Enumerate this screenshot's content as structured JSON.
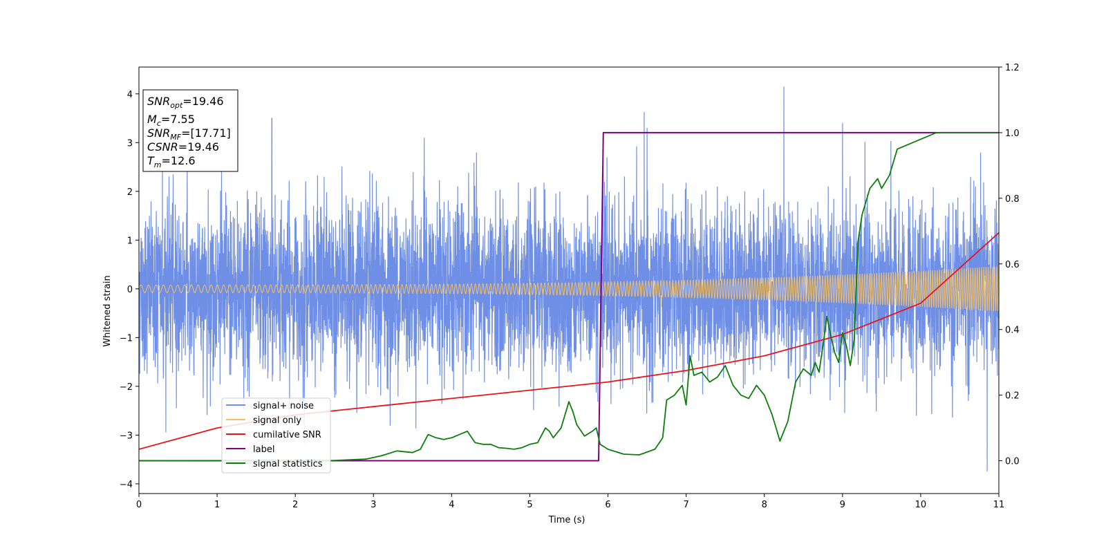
{
  "chart_data": {
    "type": "line",
    "title": "",
    "xlabel": "Time (s)",
    "ylabel": "Whitened strain",
    "xlim": [
      0,
      11
    ],
    "ylim_left": [
      -4.2,
      4.55
    ],
    "ylim_right": [
      -0.1,
      1.2
    ],
    "x_ticks": [
      0,
      1,
      2,
      3,
      4,
      5,
      6,
      7,
      8,
      9,
      10,
      11
    ],
    "y_left_ticks": [
      -4,
      -3,
      -2,
      -1,
      0,
      1,
      2,
      3,
      4
    ],
    "y_right_ticks": [
      0.0,
      0.2,
      0.4,
      0.6,
      0.8,
      1.0,
      1.2
    ],
    "grid": false,
    "legend_position": "lower-left",
    "info_box": {
      "snr_opt": "SNR",
      "snr_opt_sub": "opt",
      "snr_opt_value": "=19.46",
      "mc": "M",
      "mc_sub": "c",
      "mc_value": "=7.55",
      "snr_mf": "SNR",
      "snr_mf_sub": "MF",
      "snr_mf_value": "=[17.71]",
      "csnr": "CSNR",
      "csnr_value": "=19.46",
      "tm": "T",
      "tm_sub": "m",
      "tm_value": "=12.6"
    },
    "series": [
      {
        "name": "signal+ noise",
        "axis": "left",
        "color": "#6f8fe6",
        "kind": "noise",
        "envelope_typical": 2.2,
        "sample_peaks": [
          {
            "x": 0.3,
            "y": 2.55
          },
          {
            "x": 1.7,
            "y": 3.5
          },
          {
            "x": 3.65,
            "y": 3.1
          },
          {
            "x": 6.5,
            "y": 3.3
          },
          {
            "x": 8.25,
            "y": 4.15
          },
          {
            "x": 9.0,
            "y": 3.4
          },
          {
            "x": 10.85,
            "y": -3.75
          }
        ]
      },
      {
        "name": "signal only",
        "axis": "left",
        "color": "#f5c061",
        "kind": "chirp",
        "amplitude_start": 0.08,
        "amplitude_end": 0.47
      },
      {
        "name": "cumilative SNR",
        "axis": "right",
        "color": "#e8141a",
        "x": [
          0,
          1,
          2,
          3,
          4,
          5,
          6,
          7,
          8,
          9,
          10,
          11
        ],
        "y": [
          0.035,
          0.1,
          0.14,
          0.165,
          0.19,
          0.215,
          0.24,
          0.275,
          0.32,
          0.385,
          0.48,
          0.695
        ]
      },
      {
        "name": "label",
        "axis": "right",
        "color": "#800080",
        "x": [
          0,
          5.88,
          5.94,
          11
        ],
        "y": [
          0,
          0,
          1,
          1
        ]
      },
      {
        "name": "signal statistics",
        "axis": "right",
        "color": "#0a7d0a",
        "x": [
          0,
          2.5,
          2.9,
          3.1,
          3.3,
          3.5,
          3.6,
          3.7,
          3.8,
          3.9,
          4.0,
          4.1,
          4.2,
          4.3,
          4.4,
          4.5,
          4.6,
          4.7,
          4.8,
          4.9,
          5.0,
          5.1,
          5.2,
          5.25,
          5.3,
          5.4,
          5.5,
          5.55,
          5.6,
          5.7,
          5.8,
          5.85,
          5.9,
          6.0,
          6.2,
          6.4,
          6.6,
          6.7,
          6.75,
          6.85,
          6.95,
          7.0,
          7.05,
          7.1,
          7.2,
          7.3,
          7.4,
          7.5,
          7.6,
          7.7,
          7.8,
          7.9,
          8.0,
          8.05,
          8.1,
          8.15,
          8.2,
          8.3,
          8.4,
          8.5,
          8.6,
          8.65,
          8.7,
          8.75,
          8.8,
          8.85,
          8.9,
          8.95,
          9.0,
          9.05,
          9.1,
          9.15,
          9.2,
          9.25,
          9.35,
          9.45,
          9.5,
          9.6,
          9.7,
          9.8,
          9.9,
          10.0,
          10.1,
          10.2,
          10.4,
          10.6,
          11.0
        ],
        "y": [
          0,
          0.001,
          0.005,
          0.015,
          0.03,
          0.025,
          0.035,
          0.08,
          0.07,
          0.065,
          0.07,
          0.08,
          0.09,
          0.055,
          0.05,
          0.05,
          0.04,
          0.038,
          0.035,
          0.04,
          0.05,
          0.055,
          0.1,
          0.09,
          0.07,
          0.1,
          0.18,
          0.15,
          0.11,
          0.075,
          0.09,
          0.1,
          0.05,
          0.035,
          0.02,
          0.018,
          0.035,
          0.07,
          0.185,
          0.2,
          0.23,
          0.17,
          0.32,
          0.26,
          0.27,
          0.24,
          0.255,
          0.29,
          0.23,
          0.2,
          0.19,
          0.23,
          0.2,
          0.17,
          0.14,
          0.1,
          0.06,
          0.12,
          0.24,
          0.28,
          0.26,
          0.3,
          0.27,
          0.35,
          0.44,
          0.38,
          0.33,
          0.3,
          0.39,
          0.35,
          0.29,
          0.37,
          0.67,
          0.75,
          0.83,
          0.86,
          0.83,
          0.87,
          0.95,
          0.96,
          0.97,
          0.98,
          0.99,
          1.0,
          1.0,
          1.0,
          1.0
        ]
      }
    ]
  }
}
